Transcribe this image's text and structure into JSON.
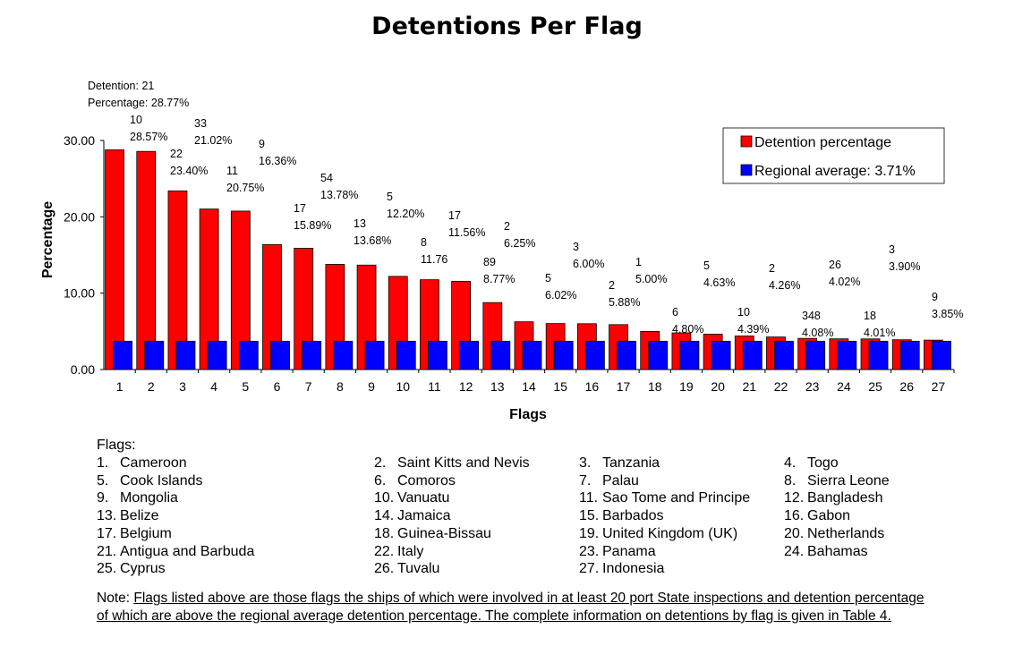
{
  "title": "Detentions Per Flag",
  "chart_data": {
    "type": "bar",
    "xlabel": "Flags",
    "ylabel": "Percentage",
    "ylim": [
      0,
      30
    ],
    "yticks": [
      "0.00",
      "10.00",
      "20.00",
      "30.00"
    ],
    "categories": [
      "1",
      "2",
      "3",
      "4",
      "5",
      "6",
      "7",
      "8",
      "9",
      "10",
      "11",
      "12",
      "13",
      "14",
      "15",
      "16",
      "17",
      "18",
      "19",
      "20",
      "21",
      "22",
      "23",
      "24",
      "25",
      "26",
      "27"
    ],
    "series": [
      {
        "name": "Detention percentage",
        "color": "#ff0000",
        "values": [
          28.77,
          28.57,
          23.4,
          21.02,
          20.75,
          16.36,
          15.89,
          13.78,
          13.68,
          12.2,
          11.76,
          11.56,
          8.77,
          6.25,
          6.02,
          6.0,
          5.88,
          5.0,
          4.8,
          4.63,
          4.39,
          4.26,
          4.08,
          4.02,
          4.01,
          3.9,
          3.85
        ]
      },
      {
        "name": "Regional average: 3.71%",
        "color": "#0000ff",
        "values": [
          3.71,
          3.71,
          3.71,
          3.71,
          3.71,
          3.71,
          3.71,
          3.71,
          3.71,
          3.71,
          3.71,
          3.71,
          3.71,
          3.71,
          3.71,
          3.71,
          3.71,
          3.71,
          3.71,
          3.71,
          3.71,
          3.71,
          3.71,
          3.71,
          3.71,
          3.71,
          3.71
        ]
      }
    ],
    "data_labels": [
      {
        "line1": "Detention: 21",
        "line2": "Percentage: 28.77%"
      },
      {
        "line1": "10",
        "line2": "28.57%"
      },
      {
        "line1": "22",
        "line2": "23.40%"
      },
      {
        "line1": "33",
        "line2": "21.02%"
      },
      {
        "line1": "11",
        "line2": "20.75%"
      },
      {
        "line1": "9",
        "line2": "16.36%"
      },
      {
        "line1": "17",
        "line2": "15.89%"
      },
      {
        "line1": "54",
        "line2": "13.78%"
      },
      {
        "line1": "13",
        "line2": "13.68%"
      },
      {
        "line1": "5",
        "line2": "12.20%"
      },
      {
        "line1": "8",
        "line2": "11.76"
      },
      {
        "line1": "17",
        "line2": "11.56%"
      },
      {
        "line1": "89",
        "line2": "8.77%"
      },
      {
        "line1": "2",
        "line2": "6.25%"
      },
      {
        "line1": "5",
        "line2": "6.02%"
      },
      {
        "line1": "3",
        "line2": "6.00%"
      },
      {
        "line1": "2",
        "line2": "5.88%"
      },
      {
        "line1": "1",
        "line2": "5.00%"
      },
      {
        "line1": "6",
        "line2": "4.80%"
      },
      {
        "line1": "5",
        "line2": "4.63%"
      },
      {
        "line1": "10",
        "line2": "4.39%"
      },
      {
        "line1": "2",
        "line2": "4.26%"
      },
      {
        "line1": "348",
        "line2": "4.08%"
      },
      {
        "line1": "26",
        "line2": "4.02%"
      },
      {
        "line1": "18",
        "line2": "4.01%"
      },
      {
        "line1": "3",
        "line2": "3.90%"
      },
      {
        "line1": "9",
        "line2": "3.85%"
      }
    ],
    "legend_position": "top-right"
  },
  "flags_heading": "Flags:",
  "flags": [
    {
      "num": "1.",
      "name": "Cameroon"
    },
    {
      "num": "2.",
      "name": "Saint Kitts and Nevis"
    },
    {
      "num": "3.",
      "name": "Tanzania"
    },
    {
      "num": "4.",
      "name": "Togo"
    },
    {
      "num": "5.",
      "name": "Cook Islands"
    },
    {
      "num": "6.",
      "name": "Comoros"
    },
    {
      "num": "7.",
      "name": "Palau"
    },
    {
      "num": "8.",
      "name": "Sierra Leone"
    },
    {
      "num": "9.",
      "name": "Mongolia"
    },
    {
      "num": "10.",
      "name": "Vanuatu"
    },
    {
      "num": "11.",
      "name": "Sao Tome and Principe"
    },
    {
      "num": "12.",
      "name": "Bangladesh"
    },
    {
      "num": "13.",
      "name": "Belize"
    },
    {
      "num": "14.",
      "name": "Jamaica"
    },
    {
      "num": "15.",
      "name": "Barbados"
    },
    {
      "num": "16.",
      "name": "Gabon"
    },
    {
      "num": "17.",
      "name": "Belgium"
    },
    {
      "num": "18.",
      "name": "Guinea-Bissau"
    },
    {
      "num": "19.",
      "name": "United Kingdom (UK)"
    },
    {
      "num": "20.",
      "name": "Netherlands"
    },
    {
      "num": "21.",
      "name": "Antigua and Barbuda"
    },
    {
      "num": "22.",
      "name": "Italy"
    },
    {
      "num": "23.",
      "name": "Panama"
    },
    {
      "num": "24.",
      "name": "Bahamas"
    },
    {
      "num": "25.",
      "name": "Cyprus"
    },
    {
      "num": "26.",
      "name": "Tuvalu"
    },
    {
      "num": "27.",
      "name": "Indonesia"
    }
  ],
  "note": {
    "prefix": "Note: ",
    "text": "Flags listed above are those flags the ships of which were involved in at least 20 port State inspections and detention percentage of which are above the regional average detention percentage. The complete information on detentions by flag is given in Table 4."
  }
}
